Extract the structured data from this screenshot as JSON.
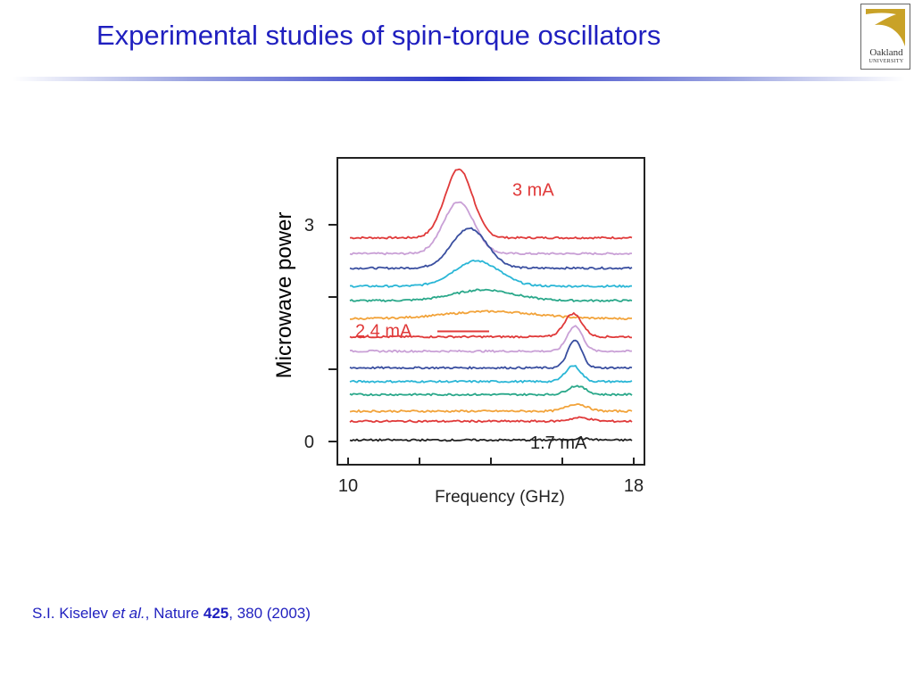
{
  "slide": {
    "title": "Experimental studies of spin-torque oscillators",
    "logo": {
      "name": "Oakland",
      "sub": "UNIVERSITY",
      "color": "#c9a227"
    },
    "citation": {
      "authors": "S.I. Kiselev",
      "etal": "et al.",
      "sep1": ",",
      "journal": " Nature ",
      "volume": "425",
      "rest": ", 380 (2003)"
    }
  },
  "chart_data": {
    "type": "line",
    "title": "",
    "xlabel": "Frequency (GHz)",
    "ylabel": "Microwave power",
    "xlim": [
      10,
      18
    ],
    "ylim": [
      -0.2,
      3.9
    ],
    "x_ticks": [
      10,
      12,
      14,
      16,
      18
    ],
    "x_tick_labels": {
      "10": "10",
      "18": "18"
    },
    "y_ticks": [
      0,
      1,
      2,
      3
    ],
    "y_tick_labels": {
      "0": "0",
      "3": "3"
    },
    "grid": false,
    "annotations": [
      {
        "text": "3 mA",
        "color": "#e03a3a",
        "x": 14.6,
        "y": 3.4
      },
      {
        "text": "2.4 mA",
        "color": "#e03a3a",
        "x": 10.2,
        "y": 1.45
      },
      {
        "text": "1.7 mA",
        "color": "#222222",
        "x": 15.1,
        "y": -0.1
      }
    ],
    "series": [
      {
        "color": "#e03a3a",
        "baseline": 2.82,
        "peaks": [
          {
            "x": 13.1,
            "amp": 0.95,
            "w": 0.55
          }
        ]
      },
      {
        "color": "#c9a0d6",
        "baseline": 2.6,
        "peaks": [
          {
            "x": 13.1,
            "amp": 0.72,
            "w": 0.6
          }
        ]
      },
      {
        "color": "#3a4fa0",
        "baseline": 2.4,
        "peaks": [
          {
            "x": 13.4,
            "amp": 0.55,
            "w": 0.7
          }
        ]
      },
      {
        "color": "#2ab6d6",
        "baseline": 2.15,
        "peaks": [
          {
            "x": 13.6,
            "amp": 0.35,
            "w": 0.9
          }
        ]
      },
      {
        "color": "#2aa88a",
        "baseline": 1.95,
        "peaks": [
          {
            "x": 13.8,
            "amp": 0.15,
            "w": 1.2
          }
        ]
      },
      {
        "color": "#f2a33a",
        "baseline": 1.7,
        "peaks": [
          {
            "x": 14.0,
            "amp": 0.1,
            "w": 1.8
          }
        ]
      },
      {
        "color": "#e03a3a",
        "baseline": 1.45,
        "peaks": [
          {
            "x": 16.3,
            "amp": 0.32,
            "w": 0.35
          }
        ]
      },
      {
        "color": "#c9a0d6",
        "baseline": 1.25,
        "peaks": [
          {
            "x": 16.35,
            "amp": 0.35,
            "w": 0.3
          }
        ]
      },
      {
        "color": "#3a4fa0",
        "baseline": 1.02,
        "peaks": [
          {
            "x": 16.35,
            "amp": 0.38,
            "w": 0.28
          }
        ]
      },
      {
        "color": "#2ab6d6",
        "baseline": 0.83,
        "peaks": [
          {
            "x": 16.3,
            "amp": 0.22,
            "w": 0.3
          }
        ]
      },
      {
        "color": "#2aa88a",
        "baseline": 0.65,
        "peaks": [
          {
            "x": 16.4,
            "amp": 0.12,
            "w": 0.35
          }
        ]
      },
      {
        "color": "#f2a33a",
        "baseline": 0.42,
        "peaks": [
          {
            "x": 16.4,
            "amp": 0.1,
            "w": 0.4
          }
        ]
      },
      {
        "color": "#e03a3a",
        "baseline": 0.28,
        "peaks": [
          {
            "x": 16.5,
            "amp": 0.05,
            "w": 0.4
          }
        ]
      },
      {
        "color": "#222222",
        "baseline": 0.02,
        "peaks": [
          {
            "x": 16.5,
            "amp": 0.02,
            "w": 0.4
          }
        ]
      }
    ]
  }
}
